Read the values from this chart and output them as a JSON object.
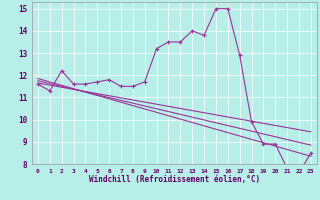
{
  "xlabel": "Windchill (Refroidissement éolien,°C)",
  "ylabel": "",
  "bg_color": "#b8eee8",
  "line_color": "#993399",
  "xlim": [
    -0.5,
    23.5
  ],
  "ylim": [
    8,
    15.3
  ],
  "yticks": [
    8,
    9,
    10,
    11,
    12,
    13,
    14,
    15
  ],
  "xticks": [
    0,
    1,
    2,
    3,
    4,
    5,
    6,
    7,
    8,
    9,
    10,
    11,
    12,
    13,
    14,
    15,
    16,
    17,
    18,
    19,
    20,
    21,
    22,
    23
  ],
  "main_x": [
    0,
    1,
    2,
    3,
    4,
    5,
    6,
    7,
    8,
    9,
    10,
    11,
    12,
    13,
    14,
    15,
    16,
    17,
    18,
    19,
    20,
    21,
    22,
    23
  ],
  "main_y": [
    11.6,
    11.3,
    12.2,
    11.6,
    11.6,
    11.7,
    11.8,
    11.5,
    11.5,
    11.7,
    13.2,
    13.5,
    13.5,
    14.0,
    13.8,
    15.0,
    15.0,
    12.9,
    9.9,
    8.9,
    8.9,
    7.8,
    7.6,
    8.5
  ],
  "line2_x": [
    0,
    23
  ],
  "line2_y": [
    11.85,
    8.35
  ],
  "line3_x": [
    0,
    23
  ],
  "line3_y": [
    11.75,
    8.85
  ],
  "line4_x": [
    0,
    23
  ],
  "line4_y": [
    11.65,
    9.45
  ]
}
